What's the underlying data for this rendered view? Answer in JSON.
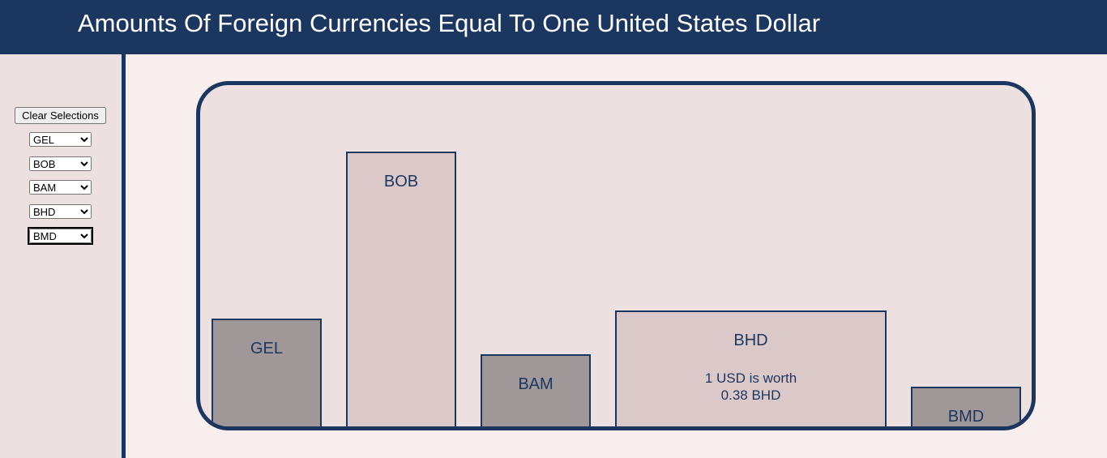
{
  "header": {
    "title": "Amounts Of Foreign Currencies Equal To One United States Dollar"
  },
  "sidebar": {
    "button": "Clear Selections"
  },
  "currencies": [
    {
      "code": "GEL",
      "rate": 2.72
    },
    {
      "code": "BOB",
      "rate": 6.91
    },
    {
      "code": "BAM",
      "rate": 1.82
    },
    {
      "code": "BHD",
      "rate": 0.38,
      "detail": [
        "1 USD is worth",
        "0.38 BHD"
      ]
    },
    {
      "code": "BMD",
      "rate": 1
    }
  ]
}
